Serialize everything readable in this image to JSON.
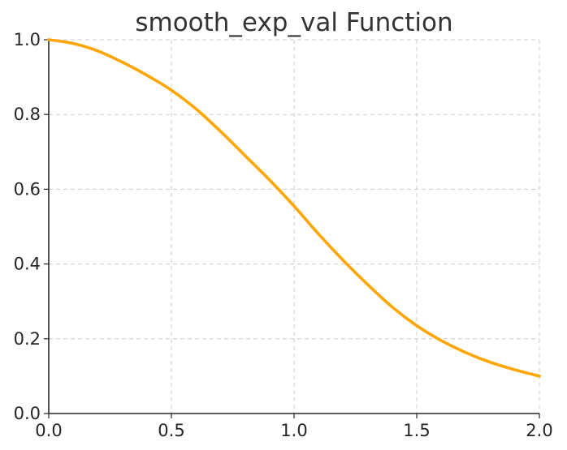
{
  "chart_data": {
    "type": "line",
    "title": "smooth_exp_val Function",
    "xlabel": "",
    "ylabel": "",
    "xlim": [
      0,
      2
    ],
    "ylim": [
      0,
      1
    ],
    "grid": true,
    "x_ticks": [
      "0.0",
      "0.5",
      "1.0",
      "1.5",
      "2.0"
    ],
    "y_ticks": [
      "0.0",
      "0.2",
      "0.4",
      "0.6",
      "0.8",
      "1.0"
    ],
    "series": [
      {
        "color": "#FFA500",
        "x": [
          0.0,
          0.1,
          0.2,
          0.3,
          0.4,
          0.5,
          0.6,
          0.7,
          0.8,
          0.9,
          1.0,
          1.1,
          1.2,
          1.3,
          1.4,
          1.5,
          1.6,
          1.7,
          1.8,
          1.9,
          2.0
        ],
        "y": [
          1.0,
          0.99,
          0.97,
          0.94,
          0.905,
          0.865,
          0.815,
          0.755,
          0.69,
          0.625,
          0.555,
          0.48,
          0.41,
          0.345,
          0.285,
          0.235,
          0.195,
          0.163,
          0.137,
          0.117,
          0.1
        ]
      }
    ]
  }
}
